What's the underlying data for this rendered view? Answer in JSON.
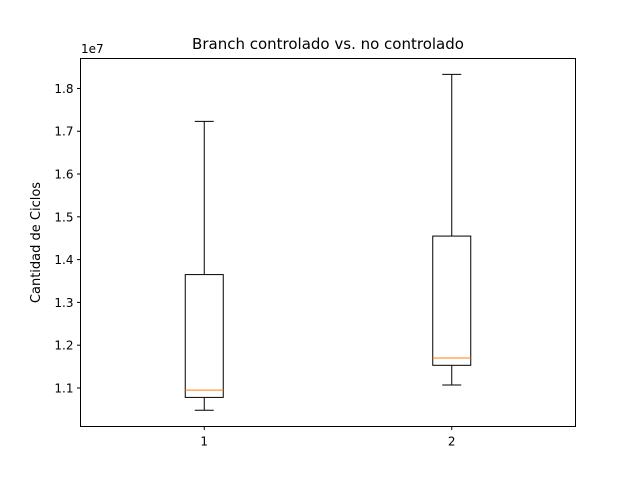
{
  "chart_data": {
    "type": "box",
    "title": "Branch controlado vs. no controlado",
    "xlabel": "",
    "ylabel": "Cantidad de Ciclos",
    "y_offset_label": "1e7",
    "y_scale": 10000000,
    "ylim": [
      10100000,
      18700000
    ],
    "yticks": [
      11000000,
      12000000,
      13000000,
      14000000,
      15000000,
      16000000,
      17000000,
      18000000
    ],
    "ytick_labels": [
      "1.1",
      "1.2",
      "1.3",
      "1.4",
      "1.5",
      "1.6",
      "1.7",
      "1.8"
    ],
    "categories": [
      "1",
      "2"
    ],
    "boxes": [
      {
        "category": "1",
        "whisker_low": 10480000,
        "q1": 10780000,
        "median": 10950000,
        "q3": 13650000,
        "whisker_high": 17230000
      },
      {
        "category": "2",
        "whisker_low": 11070000,
        "q1": 11530000,
        "median": 11700000,
        "q3": 14550000,
        "whisker_high": 18330000
      }
    ],
    "grid": false,
    "colors": {
      "box": "#000000",
      "median": "#ff7f0e",
      "whisker": "#000000"
    }
  }
}
